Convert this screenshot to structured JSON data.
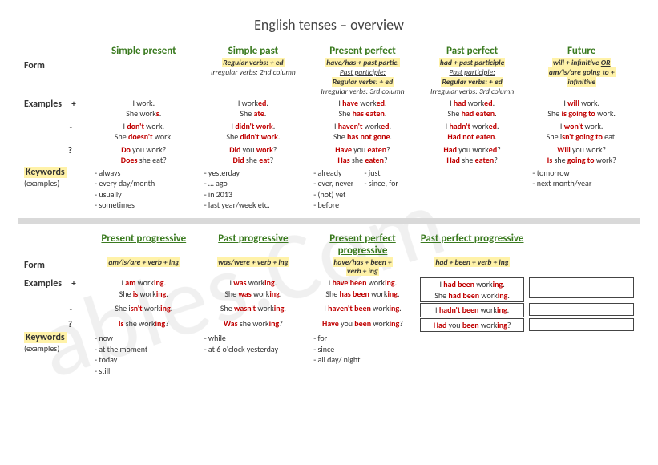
{
  "title": "English tenses – overview",
  "labels": {
    "form": "Form",
    "examples": "Examples",
    "keywords": "Keywords",
    "keywords_sub": "(examples)",
    "plus": "+",
    "minus": "-",
    "q": "?"
  },
  "top": {
    "cols": [
      {
        "head": "Simple present",
        "form": [],
        "ex_pos": [
          "I work.",
          "She work<r>s</r>."
        ],
        "ex_neg": [
          "I <r>don't</r> work.",
          "She <r>doesn't</r> work."
        ],
        "ex_q": [
          "<r>Do</r> you work?",
          "<r>Does</r> she eat?"
        ],
        "kw": [
          "- always",
          "- every day/month",
          "- usually",
          "- sometimes"
        ]
      },
      {
        "head": "Simple past",
        "form": [
          "<hl>Regular verbs: + ed</hl>",
          "<i>Irregular verbs: 2nd column</i>"
        ],
        "ex_pos": [
          "I work<r>ed</r>.",
          "She <r>ate</r>."
        ],
        "ex_neg": [
          "I <r>didn't work</r>.",
          "She <r>didn't work</r>."
        ],
        "ex_q": [
          "<r>Did</r> you <r>work</r>?",
          "<r>Did</r> she <r>eat</r>?"
        ],
        "kw": [
          "- yesterday",
          "- … ago",
          "- in 2013",
          "- last year/week etc."
        ]
      },
      {
        "head": "Present perfect",
        "form": [
          "<hl>have/has + past partic.</hl>",
          "<i><u>Past participle:</u></i>",
          "<hl>Regular verbs: + ed</hl>",
          "<i>Irregular verbs: 3rd column</i>"
        ],
        "ex_pos": [
          "I <r>have</r> work<r>ed</r>.",
          "She <r>has eaten</r>."
        ],
        "ex_neg": [
          "I <r>haven't</r> work<r>ed</r>.",
          "She <r>has not gone</r>."
        ],
        "ex_q": [
          "<r>Have</r> you <r>eaten</r>?",
          "<r>Has</r> she <r>eaten</r>?"
        ],
        "kw_two": {
          "left": [
            "- already",
            "- ever, never",
            "- (not) yet",
            "- before"
          ],
          "right": [
            "- just",
            "- since, for"
          ]
        }
      },
      {
        "head": "Past perfect",
        "form": [
          "<hl>had + past participle</hl>",
          "<i><u>Past participle:</u></i>",
          "<hl>Regular verbs: + ed</hl>",
          "<i>Irregular verbs: 3rd column</i>"
        ],
        "ex_pos": [
          "I <r>had</r> work<r>ed</r>.",
          "She <r>had eaten</r>."
        ],
        "ex_neg": [
          "I <r>hadn't</r> work<r>ed</r>.",
          "<r>Had</r> <r>not eaten</r>."
        ],
        "ex_q": [
          "<r>Had</r> you work<r>ed</r>?",
          "<r>Had</r> she <r>eaten</r>?"
        ],
        "kw": []
      },
      {
        "head": "Future",
        "form": [
          "<hl>will + infinitive <u>OR</u></hl>",
          "<hl>am/is/are going to +</hl>",
          "<hl>infinitive</hl>"
        ],
        "ex_pos": [
          "I <r>will</r> work.",
          "She <r>is going to</r> work."
        ],
        "ex_neg": [
          "I <r>won't</r> work.",
          "She i<r>sn't going to</r> eat."
        ],
        "ex_q": [
          "<r>Will</r> you work?",
          "<r>Is</r> she <r>going to</r> work?"
        ],
        "kw": [
          "- tomorrow",
          "- next month/year"
        ]
      }
    ]
  },
  "bottom": {
    "cols": [
      {
        "head": "Present progressive",
        "form": [
          "<hl>am/is/are + verb + ing</hl>"
        ],
        "ex_pos": [
          "I <r>am</r> work<r>ing</r>.",
          "She <r>is</r> work<r>ing</r>."
        ],
        "ex_neg": [
          "She i<r>sn't</r> work<r>ing</r>."
        ],
        "ex_q": [
          "<r>Is</r> she work<r>ing</r>?"
        ],
        "kw": [
          "- now",
          "- at the moment",
          "- today",
          "- still"
        ]
      },
      {
        "head": "Past progressive",
        "form": [
          "<hl>was/were + verb + ing</hl>"
        ],
        "ex_pos": [
          "I <r>was</r> work<r>ing</r>.",
          "She <r>was</r> work<r>ing</r>."
        ],
        "ex_neg": [
          "She <r>wasn't</r> work<r>ing</r>."
        ],
        "ex_q": [
          "<r>Was</r> she work<r>ing</r>?"
        ],
        "kw": [
          "- while",
          "- at 6 o'clock yesterday"
        ]
      },
      {
        "head": "Present perfect progressive",
        "form": [
          "<hl>have/has + been +</hl>",
          "<hl>verb + ing</hl>"
        ],
        "ex_pos": [
          "I <r>have been</r> work<r>ing</r>.",
          "She <r>has been</r> work<r>ing</r>."
        ],
        "ex_neg": [
          "I <r>haven't been</r> work<r>ing</r>."
        ],
        "ex_q": [
          "<r>Have</r> you <r>been</r> work<r>ing</r>?"
        ],
        "kw": [
          "- for",
          "- since",
          "- all day/ night"
        ]
      },
      {
        "head": "Past perfect progressive",
        "form": [
          "<hl>had + been + verb + ing</hl>"
        ],
        "ex_pos_boxed": [
          "I <r>had been</r> work<r>ing</r>.<br>She <r>had been</r> work<r>ing</r>."
        ],
        "ex_neg_boxed": [
          "I <r>hadn't been</r> work<r>ing</r>."
        ],
        "ex_q_boxed": [
          "<r>Had</r> you <r>been</r> work<r>ing</r>?"
        ],
        "kw": []
      }
    ]
  },
  "watermark": "ables.Com"
}
